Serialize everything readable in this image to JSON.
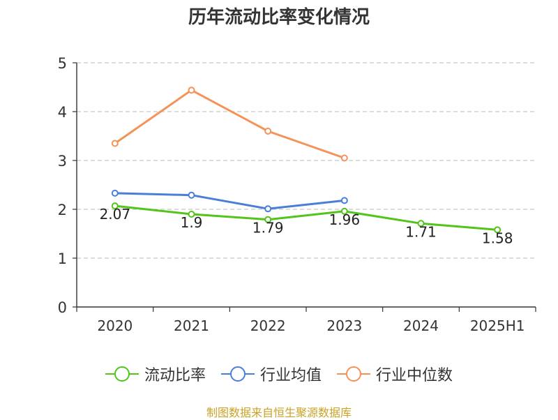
{
  "chart_data": {
    "type": "line",
    "title": "历年流动比率变化情况",
    "categories": [
      "2020",
      "2021",
      "2022",
      "2023",
      "2024",
      "2025H1"
    ],
    "ylim": [
      0,
      5
    ],
    "yticks": [
      "0",
      "1",
      "2",
      "3",
      "4",
      "5"
    ],
    "grid": true,
    "legend_position": "bottom",
    "series": [
      {
        "name": "流动比率",
        "color": "#52c41a",
        "values": [
          2.07,
          1.9,
          1.79,
          1.96,
          1.71,
          1.58
        ],
        "labels": [
          "2.07",
          "1.9",
          "1.79",
          "1.96",
          "1.71",
          "1.58"
        ]
      },
      {
        "name": "行业均值",
        "color": "#4a7fd8",
        "values": [
          2.33,
          2.29,
          2.01,
          2.18,
          null,
          null
        ]
      },
      {
        "name": "行业中位数",
        "color": "#f5925a",
        "values": [
          3.35,
          4.44,
          3.6,
          3.05,
          null,
          null
        ]
      }
    ]
  },
  "source_note": "制图数据来自恒生聚源数据库"
}
